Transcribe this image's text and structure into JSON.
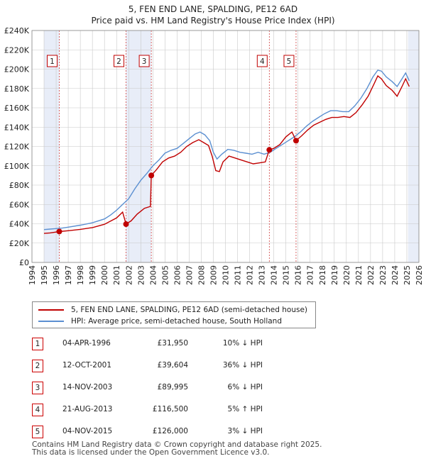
{
  "header": {
    "title": "5, FEN END LANE, SPALDING, PE12 6AD",
    "subtitle": "Price paid vs. HM Land Registry's House Price Index (HPI)"
  },
  "colors": {
    "property_line": "#c00000",
    "hpi_line": "#5b8fd1",
    "shade": "#e8edf8",
    "grid": "#c8c8c8",
    "marker_border": "#c00000"
  },
  "chart_data": {
    "type": "line",
    "title": "5, FEN END LANE, SPALDING, PE12 6AD",
    "subtitle": "Price paid vs. HM Land Registry's House Price Index (HPI)",
    "xlim": [
      1994,
      2026
    ],
    "ylim": [
      0,
      240000
    ],
    "x_ticks": [
      "1994",
      "1995",
      "1996",
      "1997",
      "1998",
      "1999",
      "2000",
      "2001",
      "2002",
      "2003",
      "2004",
      "2005",
      "2006",
      "2007",
      "2008",
      "2009",
      "2010",
      "2011",
      "2012",
      "2013",
      "2014",
      "2015",
      "2016",
      "2017",
      "2018",
      "2019",
      "2020",
      "2021",
      "2022",
      "2023",
      "2024",
      "2025",
      "2026"
    ],
    "y_ticks": [
      {
        "value": 0,
        "label": "£0"
      },
      {
        "value": 20000,
        "label": "£20K"
      },
      {
        "value": 40000,
        "label": "£40K"
      },
      {
        "value": 60000,
        "label": "£60K"
      },
      {
        "value": 80000,
        "label": "£80K"
      },
      {
        "value": 100000,
        "label": "£100K"
      },
      {
        "value": 120000,
        "label": "£120K"
      },
      {
        "value": 140000,
        "label": "£140K"
      },
      {
        "value": 160000,
        "label": "£160K"
      },
      {
        "value": 180000,
        "label": "£180K"
      },
      {
        "value": 200000,
        "label": "£200K"
      },
      {
        "value": 220000,
        "label": "£220K"
      },
      {
        "value": 240000,
        "label": "£240K"
      }
    ],
    "shaded_ranges": [
      [
        1995,
        1996.26
      ],
      [
        2001.78,
        2003.87
      ],
      [
        2025.1,
        2026
      ]
    ],
    "series": [
      {
        "name": "5, FEN END LANE, SPALDING, PE12 6AD (semi-detached house)",
        "color": "#c00000",
        "points": [
          [
            1995.0,
            30000
          ],
          [
            1995.5,
            30500
          ],
          [
            1996.26,
            31950
          ],
          [
            1997,
            32800
          ],
          [
            1998,
            34200
          ],
          [
            1999,
            36000
          ],
          [
            2000,
            39500
          ],
          [
            2001,
            46000
          ],
          [
            2001.5,
            52000
          ],
          [
            2001.78,
            39604
          ],
          [
            2002.2,
            43000
          ],
          [
            2002.7,
            50000
          ],
          [
            2003.3,
            56000
          ],
          [
            2003.8,
            58000
          ],
          [
            2003.87,
            89995
          ],
          [
            2004.3,
            96000
          ],
          [
            2004.8,
            104000
          ],
          [
            2005.3,
            108000
          ],
          [
            2005.8,
            110000
          ],
          [
            2006.3,
            114000
          ],
          [
            2006.8,
            120000
          ],
          [
            2007.3,
            124000
          ],
          [
            2007.8,
            127000
          ],
          [
            2008.2,
            124000
          ],
          [
            2008.6,
            121000
          ],
          [
            2008.9,
            110000
          ],
          [
            2009.2,
            95000
          ],
          [
            2009.5,
            94000
          ],
          [
            2009.8,
            104000
          ],
          [
            2010.3,
            110000
          ],
          [
            2010.8,
            108000
          ],
          [
            2011.3,
            106000
          ],
          [
            2011.8,
            104000
          ],
          [
            2012.3,
            102000
          ],
          [
            2012.8,
            103000
          ],
          [
            2013.3,
            104000
          ],
          [
            2013.63,
            116500
          ],
          [
            2014.0,
            118000
          ],
          [
            2014.5,
            122000
          ],
          [
            2015.0,
            130000
          ],
          [
            2015.5,
            135000
          ],
          [
            2015.84,
            126000
          ],
          [
            2016.3,
            131000
          ],
          [
            2016.8,
            137000
          ],
          [
            2017.3,
            142000
          ],
          [
            2017.8,
            145000
          ],
          [
            2018.3,
            148000
          ],
          [
            2018.8,
            150000
          ],
          [
            2019.3,
            150000
          ],
          [
            2019.8,
            151000
          ],
          [
            2020.3,
            150000
          ],
          [
            2020.8,
            155000
          ],
          [
            2021.3,
            163000
          ],
          [
            2021.8,
            172000
          ],
          [
            2022.3,
            185000
          ],
          [
            2022.6,
            193000
          ],
          [
            2022.9,
            190000
          ],
          [
            2023.3,
            183000
          ],
          [
            2023.8,
            178000
          ],
          [
            2024.2,
            172000
          ],
          [
            2024.6,
            182000
          ],
          [
            2024.9,
            190000
          ],
          [
            2025.2,
            182000
          ]
        ]
      },
      {
        "name": "HPI: Average price, semi-detached house, South Holland",
        "color": "#5b8fd1",
        "points": [
          [
            1995.0,
            34000
          ],
          [
            1995.5,
            34500
          ],
          [
            1996.0,
            35000
          ],
          [
            1996.5,
            35500
          ],
          [
            1997,
            36500
          ],
          [
            1998,
            38500
          ],
          [
            1999,
            41000
          ],
          [
            2000,
            45000
          ],
          [
            2000.5,
            49000
          ],
          [
            2001.0,
            54000
          ],
          [
            2001.5,
            60000
          ],
          [
            2002.0,
            66000
          ],
          [
            2002.5,
            76000
          ],
          [
            2003.0,
            85000
          ],
          [
            2003.5,
            92000
          ],
          [
            2004.0,
            100000
          ],
          [
            2004.5,
            106000
          ],
          [
            2005.0,
            113000
          ],
          [
            2005.5,
            116000
          ],
          [
            2006.0,
            118000
          ],
          [
            2006.5,
            123000
          ],
          [
            2007.0,
            128000
          ],
          [
            2007.5,
            133000
          ],
          [
            2007.9,
            135000
          ],
          [
            2008.3,
            132000
          ],
          [
            2008.7,
            126000
          ],
          [
            2009.0,
            114000
          ],
          [
            2009.3,
            107000
          ],
          [
            2009.7,
            112000
          ],
          [
            2010.2,
            117000
          ],
          [
            2010.7,
            116000
          ],
          [
            2011.2,
            114000
          ],
          [
            2011.7,
            113000
          ],
          [
            2012.2,
            112000
          ],
          [
            2012.7,
            114000
          ],
          [
            2013.2,
            112000
          ],
          [
            2013.7,
            114000
          ],
          [
            2014.2,
            118000
          ],
          [
            2014.7,
            122000
          ],
          [
            2015.2,
            126000
          ],
          [
            2015.7,
            130000
          ],
          [
            2016.2,
            135000
          ],
          [
            2016.7,
            141000
          ],
          [
            2017.2,
            146000
          ],
          [
            2017.7,
            150000
          ],
          [
            2018.2,
            154000
          ],
          [
            2018.7,
            157000
          ],
          [
            2019.2,
            157000
          ],
          [
            2019.7,
            156000
          ],
          [
            2020.2,
            156000
          ],
          [
            2020.7,
            162000
          ],
          [
            2021.2,
            170000
          ],
          [
            2021.7,
            180000
          ],
          [
            2022.2,
            192000
          ],
          [
            2022.6,
            199000
          ],
          [
            2022.9,
            198000
          ],
          [
            2023.3,
            192000
          ],
          [
            2023.8,
            187000
          ],
          [
            2024.2,
            182000
          ],
          [
            2024.6,
            190000
          ],
          [
            2024.9,
            196000
          ],
          [
            2025.2,
            188000
          ]
        ]
      }
    ],
    "sales": [
      {
        "n": "1",
        "x": 1996.26,
        "price": 31950
      },
      {
        "n": "2",
        "x": 2001.78,
        "price": 39604
      },
      {
        "n": "3",
        "x": 2003.87,
        "price": 89995
      },
      {
        "n": "4",
        "x": 2013.63,
        "price": 116500
      },
      {
        "n": "5",
        "x": 2015.84,
        "price": 126000
      }
    ]
  },
  "legend": {
    "property": "5, FEN END LANE, SPALDING, PE12 6AD (semi-detached house)",
    "hpi": "HPI: Average price, semi-detached house, South Holland"
  },
  "transactions": [
    {
      "n": "1",
      "date": "04-APR-1996",
      "price": "£31,950",
      "hpi": "10% ↓ HPI"
    },
    {
      "n": "2",
      "date": "12-OCT-2001",
      "price": "£39,604",
      "hpi": "36% ↓ HPI"
    },
    {
      "n": "3",
      "date": "14-NOV-2003",
      "price": "£89,995",
      "hpi": "6% ↓ HPI"
    },
    {
      "n": "4",
      "date": "21-AUG-2013",
      "price": "£116,500",
      "hpi": "5% ↑ HPI"
    },
    {
      "n": "5",
      "date": "04-NOV-2015",
      "price": "£126,000",
      "hpi": "3% ↓ HPI"
    }
  ],
  "footer": {
    "line1": "Contains HM Land Registry data © Crown copyright and database right 2025.",
    "line2": "This data is licensed under the Open Government Licence v3.0."
  }
}
